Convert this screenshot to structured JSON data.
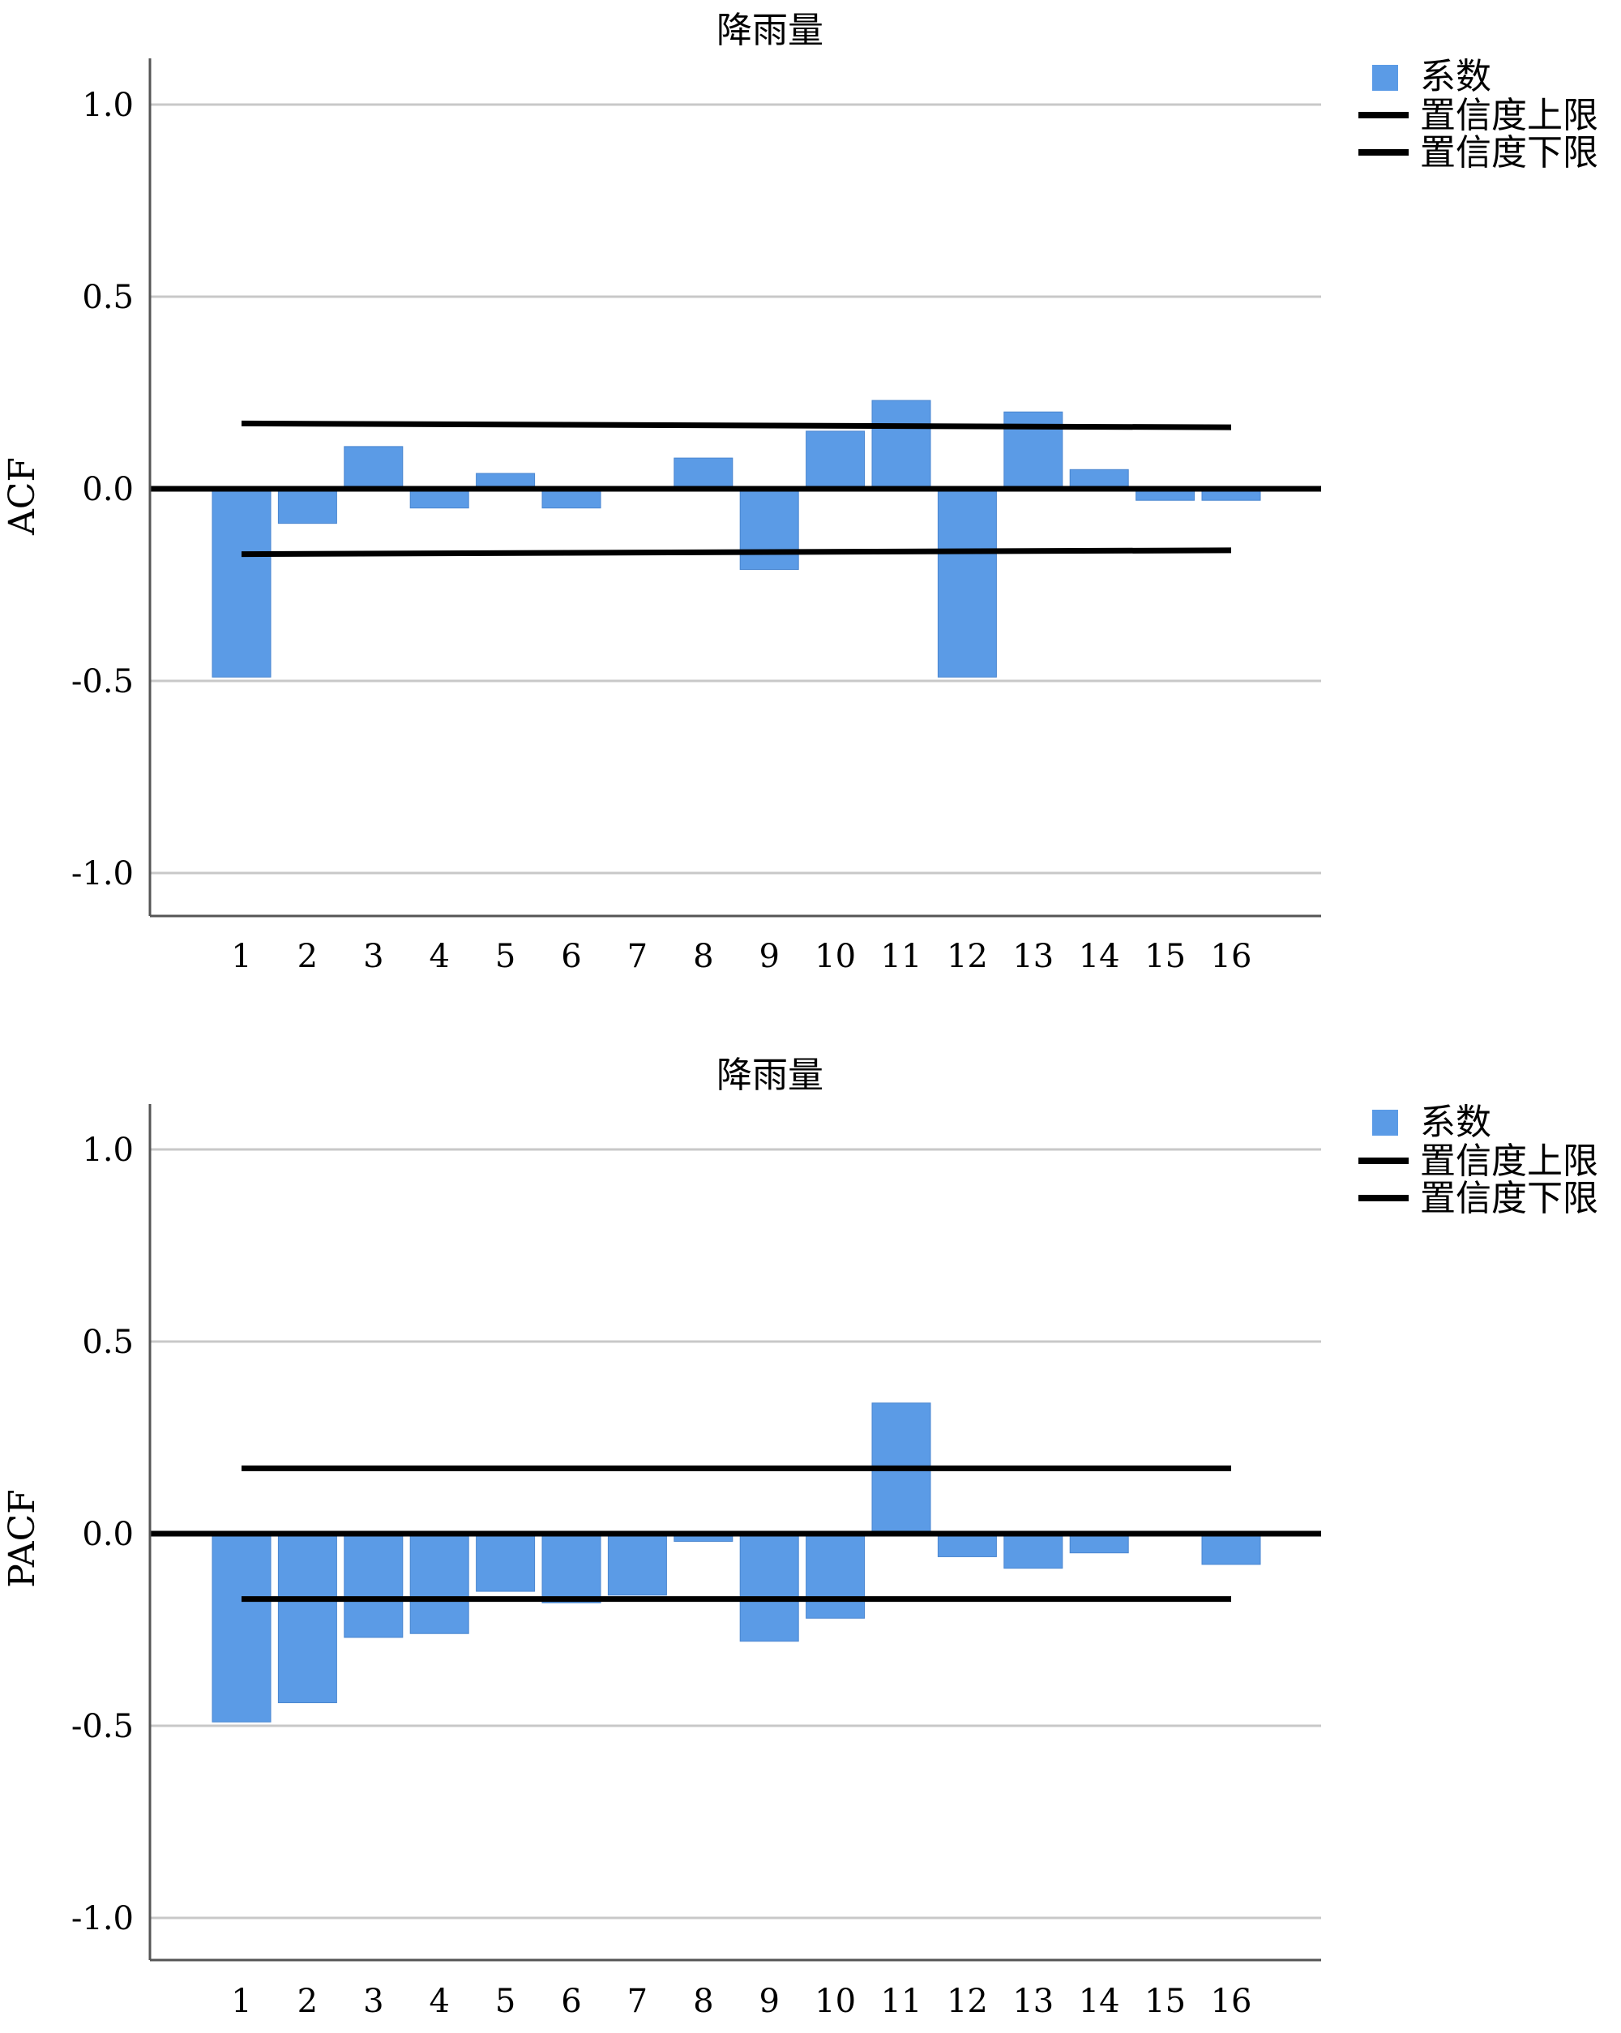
{
  "chart_data": [
    {
      "type": "bar",
      "title": "降雨量",
      "xlabel": "",
      "ylabel": "ACF",
      "ylim": [
        -1.1,
        1.1
      ],
      "yticks": [
        1.0,
        0.5,
        0.0,
        -0.5,
        -1.0
      ],
      "ytick_labels": [
        "1.0",
        "0.5",
        "0.0",
        "-0.5",
        "-1.0"
      ],
      "grid": true,
      "legend_position": "top-right",
      "legend": {
        "coef": "系数",
        "upper": "置信度上限",
        "lower": "置信度下限"
      },
      "categories": [
        "1",
        "2",
        "3",
        "4",
        "5",
        "6",
        "7",
        "8",
        "9",
        "10",
        "11",
        "12",
        "13",
        "14",
        "15",
        "16"
      ],
      "series": [
        {
          "name": "系数",
          "values": [
            -0.49,
            -0.09,
            0.11,
            -0.05,
            0.04,
            -0.05,
            0.0,
            0.08,
            -0.21,
            0.15,
            0.23,
            -0.49,
            0.2,
            0.05,
            -0.03,
            -0.03
          ]
        }
      ],
      "confidence_upper": [
        0.17,
        0.17,
        0.17,
        0.17,
        0.17,
        0.17,
        0.17,
        0.17,
        0.17,
        0.17,
        0.16,
        0.16,
        0.16,
        0.16,
        0.16,
        0.16
      ],
      "confidence_lower": [
        -0.17,
        -0.17,
        -0.17,
        -0.17,
        -0.17,
        -0.17,
        -0.17,
        -0.17,
        -0.17,
        -0.17,
        -0.16,
        -0.16,
        -0.16,
        -0.16,
        -0.16,
        -0.16
      ]
    },
    {
      "type": "bar",
      "title": "降雨量",
      "xlabel": "",
      "ylabel": "PACF",
      "ylim": [
        -1.1,
        1.1
      ],
      "yticks": [
        1.0,
        0.5,
        0.0,
        -0.5,
        -1.0
      ],
      "ytick_labels": [
        "1.0",
        "0.5",
        "0.0",
        "-0.5",
        "-1.0"
      ],
      "grid": true,
      "legend_position": "top-right",
      "legend": {
        "coef": "系数",
        "upper": "置信度上限",
        "lower": "置信度下限"
      },
      "categories": [
        "1",
        "2",
        "3",
        "4",
        "5",
        "6",
        "7",
        "8",
        "9",
        "10",
        "11",
        "12",
        "13",
        "14",
        "15",
        "16"
      ],
      "series": [
        {
          "name": "系数",
          "values": [
            -0.49,
            -0.44,
            -0.27,
            -0.26,
            -0.15,
            -0.18,
            -0.16,
            -0.02,
            -0.28,
            -0.22,
            0.34,
            -0.06,
            -0.09,
            -0.05,
            0.0,
            -0.08
          ]
        }
      ],
      "confidence_upper": [
        0.17,
        0.17,
        0.17,
        0.17,
        0.17,
        0.17,
        0.17,
        0.17,
        0.17,
        0.17,
        0.17,
        0.17,
        0.17,
        0.17,
        0.17,
        0.17
      ],
      "confidence_lower": [
        -0.17,
        -0.17,
        -0.17,
        -0.17,
        -0.17,
        -0.17,
        -0.17,
        -0.17,
        -0.17,
        -0.17,
        -0.17,
        -0.17,
        -0.17,
        -0.17,
        -0.17,
        -0.17
      ]
    }
  ],
  "colors": {
    "bar": "#5B9BE6",
    "grid": "#C8C8C8",
    "line": "#000000"
  }
}
